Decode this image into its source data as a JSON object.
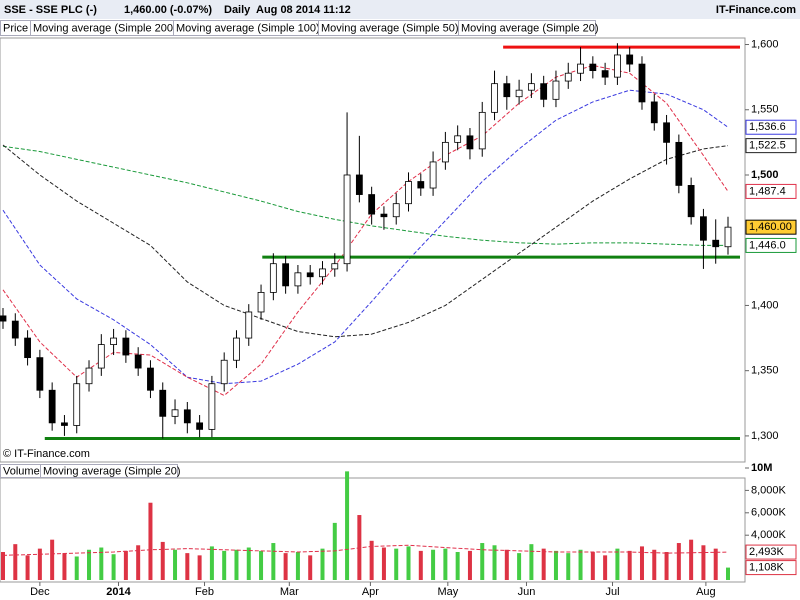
{
  "chart_data": [
    {
      "type": "candlestick",
      "title": "SSE - SSE PLC (-)",
      "quote": "1,460.00 (-0.07%)",
      "interval": "Daily",
      "timestamp": "Aug 08 2014 11:12",
      "brand": "IT-Finance.com",
      "copyright": "© IT-Finance.com",
      "legend_price": "Price",
      "open": [
        1392,
        1388,
        1375,
        1360,
        1335,
        1310,
        1308,
        1340,
        1352,
        1370,
        1375,
        1362,
        1352,
        1335,
        1315,
        1320,
        1310,
        1305,
        1340,
        1358,
        1375,
        1395,
        1410,
        1432,
        1415,
        1425,
        1422,
        1428,
        1432,
        1500,
        1485,
        1470,
        1468,
        1478,
        1495,
        1490,
        1510,
        1525,
        1530,
        1520,
        1548,
        1570,
        1560,
        1565,
        1570,
        1558,
        1572,
        1578,
        1585,
        1580,
        1575,
        1592,
        1585,
        1556,
        1540,
        1525,
        1492,
        1468,
        1450,
        1445
      ],
      "high": [
        1398,
        1394,
        1381,
        1366,
        1341,
        1316,
        1346,
        1358,
        1378,
        1382,
        1381,
        1368,
        1358,
        1341,
        1328,
        1326,
        1316,
        1346,
        1364,
        1381,
        1401,
        1416,
        1440,
        1438,
        1431,
        1431,
        1434,
        1440,
        1548,
        1530,
        1491,
        1476,
        1486,
        1502,
        1501,
        1518,
        1533,
        1538,
        1536,
        1556,
        1580,
        1576,
        1573,
        1578,
        1576,
        1580,
        1586,
        1598,
        1591,
        1586,
        1601,
        1598,
        1591,
        1562,
        1546,
        1531,
        1498,
        1474,
        1466,
        1468
      ],
      "low": [
        1382,
        1369,
        1354,
        1329,
        1304,
        1300,
        1302,
        1334,
        1346,
        1362,
        1356,
        1346,
        1329,
        1298,
        1309,
        1302,
        1299,
        1299,
        1334,
        1352,
        1369,
        1389,
        1404,
        1409,
        1409,
        1416,
        1416,
        1422,
        1426,
        1479,
        1462,
        1458,
        1462,
        1472,
        1484,
        1484,
        1504,
        1519,
        1512,
        1514,
        1542,
        1550,
        1554,
        1559,
        1552,
        1552,
        1566,
        1572,
        1574,
        1569,
        1569,
        1579,
        1550,
        1534,
        1508,
        1486,
        1462,
        1428,
        1432,
        1439
      ],
      "close": [
        1388,
        1375,
        1360,
        1335,
        1310,
        1308,
        1340,
        1352,
        1370,
        1375,
        1362,
        1352,
        1335,
        1315,
        1320,
        1310,
        1305,
        1340,
        1358,
        1375,
        1395,
        1410,
        1432,
        1415,
        1425,
        1422,
        1428,
        1432,
        1500,
        1485,
        1470,
        1468,
        1478,
        1495,
        1490,
        1510,
        1525,
        1530,
        1520,
        1548,
        1570,
        1560,
        1565,
        1570,
        1558,
        1572,
        1578,
        1585,
        1580,
        1575,
        1592,
        1585,
        1556,
        1540,
        1525,
        1492,
        1468,
        1450,
        1445,
        1460
      ],
      "ma_x": [
        0,
        3,
        6,
        9,
        12,
        15,
        18,
        21,
        24,
        27,
        30,
        33,
        36,
        39,
        42,
        45,
        48,
        51,
        54,
        57,
        59
      ],
      "ma_series": [
        {
          "name": "Moving average (Simple 200)",
          "color": "#1a9a3a",
          "values": [
            1522,
            1518,
            1512,
            1506,
            1500,
            1494,
            1487,
            1480,
            1472,
            1466,
            1461,
            1457,
            1453,
            1450,
            1448,
            1447,
            1448,
            1448,
            1447,
            1446,
            1446
          ]
        },
        {
          "name": "Moving average (Simple 100)",
          "color": "#222222",
          "values": [
            1523,
            1500,
            1480,
            1463,
            1446,
            1418,
            1400,
            1390,
            1380,
            1376,
            1378,
            1387,
            1400,
            1420,
            1440,
            1460,
            1480,
            1497,
            1512,
            1520,
            1522.5
          ]
        },
        {
          "name": "Moving average (Simple 50)",
          "color": "#3a3ae0",
          "values": [
            1473,
            1431,
            1405,
            1389,
            1370,
            1345,
            1340,
            1342,
            1355,
            1372,
            1403,
            1435,
            1465,
            1495,
            1520,
            1542,
            1556,
            1565,
            1562,
            1550,
            1536.6
          ]
        },
        {
          "name": "Moving average (Simple 20)",
          "color": "#e0304a",
          "values": [
            1412,
            1372,
            1345,
            1364,
            1362,
            1345,
            1331,
            1355,
            1395,
            1430,
            1470,
            1495,
            1515,
            1530,
            1555,
            1575,
            1584,
            1578,
            1555,
            1515,
            1487.4
          ]
        }
      ],
      "last_labels": [
        {
          "value": 1536.6,
          "label": "1,536.6",
          "color": "#3a3ae0",
          "bg": "#ffffff"
        },
        {
          "value": 1522.5,
          "label": "1,522.5",
          "color": "#222222",
          "bg": "#ffffff"
        },
        {
          "value": 1487.4,
          "label": "1,487.4",
          "color": "#e0304a",
          "bg": "#ffffff"
        },
        {
          "value": 1460,
          "label": "1,460.00",
          "color": "#000000",
          "bg": "#ffcc33"
        },
        {
          "value": 1446,
          "label": "1,446.0",
          "color": "#1a9a3a",
          "bg": "#ffffff"
        }
      ],
      "trendlines": [
        {
          "value": 1598,
          "start": 40.7,
          "color": "#ee1111"
        },
        {
          "value": 1437,
          "start": 21.1,
          "color": "#108010"
        },
        {
          "value": 1298,
          "start": 3.4,
          "color": "#108010"
        }
      ],
      "xlim": [
        0,
        59
      ],
      "ylim": [
        1280,
        1605
      ],
      "yticks": [
        {
          "value": 1600,
          "label": "1,600"
        },
        {
          "value": 1550,
          "label": "1,550"
        },
        {
          "value": 1500,
          "label": "1,500"
        },
        {
          "value": 1400,
          "label": "1,400"
        },
        {
          "value": 1350,
          "label": "1,350"
        },
        {
          "value": 1300,
          "label": "1,300"
        }
      ],
      "xticks": [
        {
          "value": 3.0,
          "label": "Dec"
        },
        {
          "value": 9.4,
          "label": "2014"
        },
        {
          "value": 16.4,
          "label": "Feb"
        },
        {
          "value": 23.3,
          "label": "Mar"
        },
        {
          "value": 29.9,
          "label": "Apr"
        },
        {
          "value": 36.2,
          "label": "May"
        },
        {
          "value": 42.6,
          "label": "Jun"
        },
        {
          "value": 49.6,
          "label": "Jul"
        },
        {
          "value": 57.2,
          "label": "Aug"
        }
      ],
      "up_color": "#ffffff",
      "down_color": "#000000",
      "grid": false
    },
    {
      "type": "bar",
      "legend_volume": "Volume",
      "values": [
        2500,
        3200,
        2200,
        2800,
        3600,
        2400,
        2100,
        2700,
        2900,
        2300,
        2600,
        3100,
        6900,
        3400,
        2700,
        2400,
        2200,
        3000,
        2600,
        2700,
        2900,
        2600,
        3300,
        2400,
        2500,
        2200,
        2800,
        5100,
        9700,
        5800,
        3500,
        2900,
        2800,
        3000,
        2600,
        2700,
        2800,
        2500,
        2600,
        3300,
        3100,
        2700,
        2400,
        3200,
        2800,
        2600,
        2400,
        2700,
        2500,
        2200,
        2800,
        2600,
        3000,
        2700,
        2500,
        3300,
        3600,
        3100,
        2800,
        1108
      ],
      "up_color": "#44cc44",
      "down_color": "#dd3344",
      "ma": {
        "name": "Moving average (Simple 20)",
        "color": "#e0304a",
        "values": [
          2200,
          2300,
          2400,
          2500,
          2700,
          2800,
          2700,
          2600,
          2500,
          2600,
          3000,
          3100,
          2900,
          2700,
          2600,
          2500,
          2500,
          2500,
          2400,
          2450,
          2493
        ]
      },
      "last_labels": [
        {
          "value": 2493,
          "label": "2,493K"
        },
        {
          "value": 1108,
          "label": "1,108K"
        }
      ],
      "ylim": [
        0,
        10000
      ],
      "yticks": [
        {
          "value": 10000,
          "label": "10M"
        },
        {
          "value": 8000,
          "label": "8,000K"
        },
        {
          "value": 6000,
          "label": "6,000K"
        },
        {
          "value": 4000,
          "label": "4,000K"
        }
      ]
    }
  ]
}
